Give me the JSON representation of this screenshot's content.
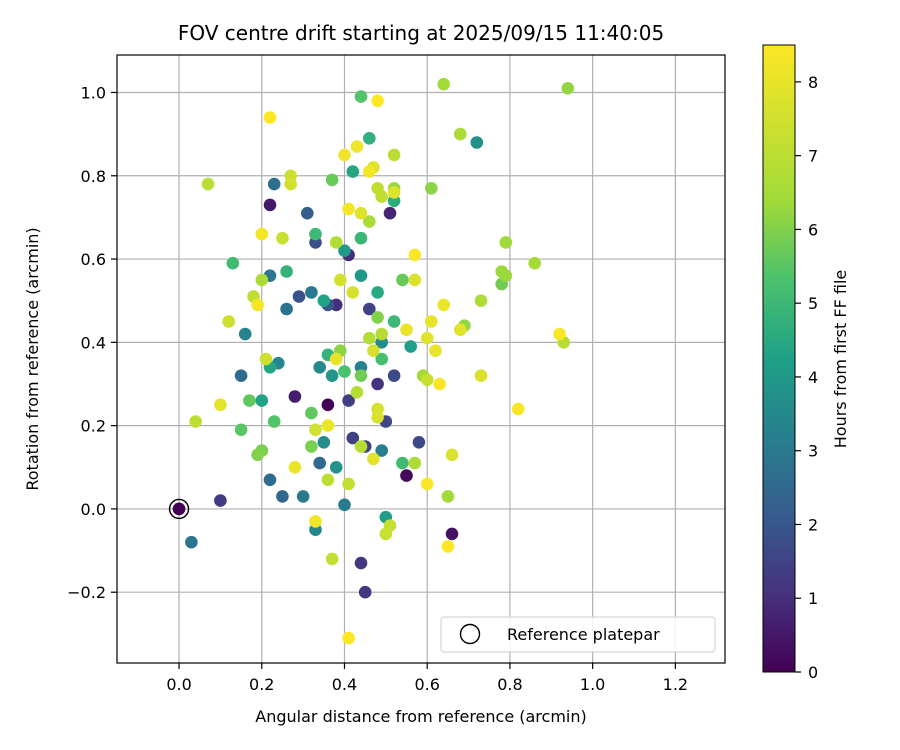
{
  "chart_data": {
    "type": "scatter",
    "title": "FOV centre drift starting at 2025/09/15 11:40:05",
    "xlabel": "Angular distance from reference (arcmin)",
    "ylabel": "Rotation from reference (arcmin)",
    "xlim": [
      -0.15,
      1.32
    ],
    "ylim": [
      -0.37,
      1.09
    ],
    "xticks": [
      0.0,
      0.2,
      0.4,
      0.6,
      0.8,
      1.0,
      1.2
    ],
    "xtick_labels": [
      "0.0",
      "0.2",
      "0.4",
      "0.6",
      "0.8",
      "1.0",
      "1.2"
    ],
    "yticks": [
      -0.2,
      0.0,
      0.2,
      0.4,
      0.6,
      0.8,
      1.0
    ],
    "ytick_labels": [
      "−0.2",
      "0.0",
      "0.2",
      "0.4",
      "0.6",
      "0.8",
      "1.0"
    ],
    "grid": true,
    "colormap": "viridis",
    "colorbar": {
      "label": "Hours from first FF file",
      "range": [
        0,
        8.5
      ],
      "ticks": [
        0,
        1,
        2,
        3,
        4,
        5,
        6,
        7,
        8
      ],
      "tick_labels": [
        "0",
        "1",
        "2",
        "3",
        "4",
        "5",
        "6",
        "7",
        "8"
      ]
    },
    "legend": {
      "placement": "lower-right",
      "entries": [
        "Reference platepar"
      ]
    },
    "reference_point": {
      "x": 0.0,
      "y": 0.0,
      "c": 0.0
    },
    "points": [
      [
        0.0,
        0.0,
        0.0
      ],
      [
        0.36,
        0.25,
        0.0
      ],
      [
        0.55,
        0.08,
        0.2
      ],
      [
        0.66,
        -0.06,
        0.4
      ],
      [
        0.22,
        0.73,
        0.5
      ],
      [
        0.28,
        0.27,
        0.6
      ],
      [
        0.51,
        0.71,
        0.8
      ],
      [
        0.41,
        0.61,
        0.9
      ],
      [
        0.38,
        0.49,
        1.0
      ],
      [
        0.48,
        0.3,
        1.1
      ],
      [
        0.44,
        -0.13,
        1.2
      ],
      [
        0.45,
        -0.2,
        1.2
      ],
      [
        0.1,
        0.02,
        1.3
      ],
      [
        0.41,
        0.26,
        1.4
      ],
      [
        0.42,
        0.17,
        1.5
      ],
      [
        0.45,
        0.15,
        1.5
      ],
      [
        0.46,
        0.48,
        1.5
      ],
      [
        0.5,
        0.21,
        1.6
      ],
      [
        0.52,
        0.32,
        1.7
      ],
      [
        0.58,
        0.16,
        1.7
      ],
      [
        0.33,
        0.64,
        1.8
      ],
      [
        0.29,
        0.51,
        1.9
      ],
      [
        0.36,
        0.49,
        2.0
      ],
      [
        0.31,
        0.71,
        2.2
      ],
      [
        0.34,
        0.11,
        2.5
      ],
      [
        0.25,
        0.03,
        2.5
      ],
      [
        0.15,
        0.32,
        2.6
      ],
      [
        0.22,
        0.07,
        2.6
      ],
      [
        0.23,
        0.78,
        2.7
      ],
      [
        0.26,
        0.48,
        2.8
      ],
      [
        0.22,
        0.56,
        2.9
      ],
      [
        0.03,
        -0.08,
        2.9
      ],
      [
        0.32,
        0.52,
        3.0
      ],
      [
        0.3,
        0.03,
        3.0
      ],
      [
        0.4,
        0.01,
        3.1
      ],
      [
        0.49,
        0.14,
        3.2
      ],
      [
        0.44,
        0.34,
        3.3
      ],
      [
        0.16,
        0.42,
        3.3
      ],
      [
        0.24,
        0.35,
        3.4
      ],
      [
        0.33,
        -0.05,
        3.4
      ],
      [
        0.34,
        0.34,
        3.5
      ],
      [
        0.35,
        0.16,
        3.6
      ],
      [
        0.49,
        0.4,
        3.6
      ],
      [
        0.72,
        0.88,
        3.7
      ],
      [
        0.38,
        0.1,
        3.8
      ],
      [
        0.37,
        0.32,
        3.9
      ],
      [
        0.4,
        0.62,
        4.0
      ],
      [
        0.44,
        0.56,
        4.0
      ],
      [
        0.5,
        -0.02,
        4.1
      ],
      [
        0.56,
        0.39,
        4.2
      ],
      [
        0.35,
        0.5,
        4.3
      ],
      [
        0.2,
        0.26,
        4.3
      ],
      [
        0.22,
        0.34,
        4.4
      ],
      [
        0.42,
        0.81,
        4.4
      ],
      [
        0.48,
        0.52,
        4.5
      ],
      [
        0.52,
        0.74,
        4.6
      ],
      [
        0.46,
        0.89,
        4.7
      ],
      [
        0.26,
        0.57,
        4.8
      ],
      [
        0.36,
        0.37,
        4.8
      ],
      [
        0.44,
        0.65,
        4.9
      ],
      [
        0.52,
        0.45,
        5.0
      ],
      [
        0.33,
        0.66,
        5.0
      ],
      [
        0.54,
        0.11,
        5.1
      ],
      [
        0.13,
        0.59,
        5.1
      ],
      [
        0.49,
        0.36,
        5.2
      ],
      [
        0.4,
        0.33,
        5.3
      ],
      [
        0.44,
        0.99,
        5.4
      ],
      [
        0.23,
        0.21,
        5.4
      ],
      [
        0.15,
        0.19,
        5.5
      ],
      [
        0.32,
        0.23,
        5.6
      ],
      [
        0.17,
        0.26,
        5.6
      ],
      [
        0.37,
        0.79,
        5.7
      ],
      [
        0.54,
        0.55,
        5.7
      ],
      [
        0.78,
        0.54,
        5.8
      ],
      [
        0.44,
        0.32,
        5.8
      ],
      [
        0.2,
        0.14,
        5.9
      ],
      [
        0.32,
        0.15,
        5.9
      ],
      [
        0.19,
        0.13,
        6.0
      ],
      [
        0.48,
        0.46,
        6.0
      ],
      [
        0.61,
        0.77,
        6.1
      ],
      [
        0.39,
        0.38,
        6.1
      ],
      [
        0.94,
        1.01,
        6.2
      ],
      [
        0.69,
        0.44,
        6.2
      ],
      [
        0.52,
        0.77,
        6.3
      ],
      [
        0.79,
        0.56,
        6.3
      ],
      [
        0.78,
        0.57,
        6.3
      ],
      [
        0.59,
        0.32,
        6.4
      ],
      [
        0.65,
        0.03,
        6.4
      ],
      [
        0.79,
        0.64,
        6.4
      ],
      [
        0.64,
        1.02,
        6.5
      ],
      [
        0.86,
        0.59,
        6.5
      ],
      [
        0.2,
        0.55,
        6.6
      ],
      [
        0.46,
        0.69,
        6.6
      ],
      [
        0.68,
        0.9,
        6.6
      ],
      [
        0.73,
        0.5,
        6.7
      ],
      [
        0.57,
        0.11,
        6.7
      ],
      [
        0.43,
        0.28,
        6.8
      ],
      [
        0.46,
        0.41,
        6.8
      ],
      [
        0.38,
        0.64,
        6.8
      ],
      [
        0.44,
        0.15,
        6.9
      ],
      [
        0.49,
        0.42,
        6.9
      ],
      [
        0.93,
        0.4,
        6.9
      ],
      [
        0.52,
        0.85,
        7.0
      ],
      [
        0.36,
        0.07,
        7.0
      ],
      [
        0.04,
        0.21,
        7.0
      ],
      [
        0.07,
        0.78,
        7.0
      ],
      [
        0.48,
        0.77,
        7.1
      ],
      [
        0.18,
        0.51,
        7.1
      ],
      [
        0.49,
        0.75,
        7.1
      ],
      [
        0.37,
        -0.12,
        7.2
      ],
      [
        0.41,
        0.06,
        7.2
      ],
      [
        0.51,
        -0.04,
        7.2
      ],
      [
        0.5,
        -0.06,
        7.3
      ],
      [
        0.25,
        0.65,
        7.3
      ],
      [
        0.6,
        0.31,
        7.3
      ],
      [
        0.12,
        0.45,
        7.4
      ],
      [
        0.21,
        0.36,
        7.4
      ],
      [
        0.27,
        0.8,
        7.4
      ],
      [
        0.27,
        0.78,
        7.5
      ],
      [
        0.39,
        0.55,
        7.5
      ],
      [
        0.33,
        0.19,
        7.5
      ],
      [
        0.42,
        0.52,
        7.6
      ],
      [
        0.48,
        0.24,
        7.6
      ],
      [
        0.47,
        0.38,
        7.6
      ],
      [
        0.57,
        0.55,
        7.7
      ],
      [
        0.48,
        0.22,
        7.7
      ],
      [
        0.73,
        0.32,
        7.7
      ],
      [
        0.66,
        0.13,
        7.7
      ],
      [
        0.47,
        0.82,
        7.8
      ],
      [
        0.52,
        0.76,
        7.8
      ],
      [
        0.44,
        0.71,
        7.8
      ],
      [
        0.6,
        0.41,
        7.8
      ],
      [
        0.1,
        0.25,
        7.9
      ],
      [
        0.47,
        0.12,
        7.9
      ],
      [
        0.68,
        0.43,
        7.9
      ],
      [
        0.61,
        0.45,
        8.0
      ],
      [
        0.62,
        0.38,
        8.0
      ],
      [
        0.55,
        0.43,
        8.0
      ],
      [
        0.38,
        0.36,
        8.0
      ],
      [
        0.64,
        0.49,
        8.1
      ],
      [
        0.36,
        0.2,
        8.1
      ],
      [
        0.28,
        0.1,
        8.1
      ],
      [
        0.33,
        -0.03,
        8.2
      ],
      [
        0.4,
        0.85,
        8.2
      ],
      [
        0.43,
        0.87,
        8.2
      ],
      [
        0.41,
        0.72,
        8.3
      ],
      [
        0.46,
        0.81,
        8.3
      ],
      [
        0.19,
        0.49,
        8.3
      ],
      [
        0.2,
        0.66,
        8.3
      ],
      [
        0.57,
        0.61,
        8.4
      ],
      [
        0.82,
        0.24,
        8.4
      ],
      [
        0.6,
        0.06,
        8.4
      ],
      [
        0.63,
        0.3,
        8.4
      ],
      [
        0.92,
        0.42,
        8.4
      ],
      [
        0.65,
        -0.09,
        8.5
      ],
      [
        0.41,
        -0.31,
        8.5
      ],
      [
        0.48,
        0.98,
        8.5
      ],
      [
        0.22,
        0.94,
        8.5
      ]
    ]
  }
}
